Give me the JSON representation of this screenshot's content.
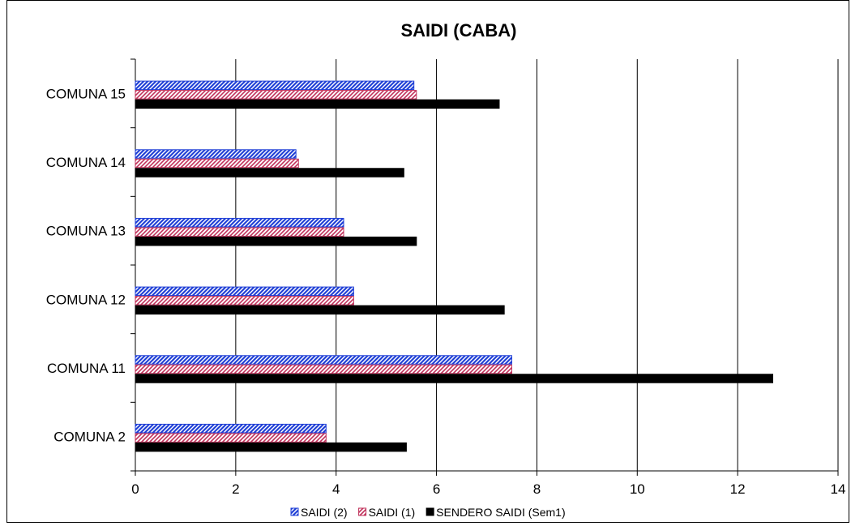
{
  "chart_data": {
    "type": "bar",
    "orientation": "horizontal",
    "title": "SAIDI (CABA)",
    "xlabel": "",
    "ylabel": "",
    "xlim": [
      0,
      14
    ],
    "x_ticks": [
      0,
      2,
      4,
      6,
      8,
      10,
      12,
      14
    ],
    "grid": "vertical major gridlines",
    "legend_position": "bottom",
    "categories": [
      "COMUNA 15",
      "COMUNA 14",
      "COMUNA 13",
      "COMUNA 12",
      "COMUNA 11",
      "COMUNA 2"
    ],
    "series": [
      {
        "name": "SAIDI (2)",
        "color": "#1f3fd6",
        "pattern": "blue-hatch",
        "values": [
          5.55,
          3.2,
          4.15,
          4.35,
          7.5,
          3.8
        ]
      },
      {
        "name": "SAIDI (1)",
        "color": "#c0305a",
        "pattern": "pink-hatch",
        "values": [
          5.6,
          3.25,
          4.15,
          4.35,
          7.5,
          3.8
        ]
      },
      {
        "name": "SENDERO SAIDI  (Sem1)",
        "color": "#000000",
        "pattern": "solid",
        "values": [
          7.25,
          5.35,
          5.6,
          7.35,
          12.7,
          5.4
        ]
      }
    ]
  }
}
